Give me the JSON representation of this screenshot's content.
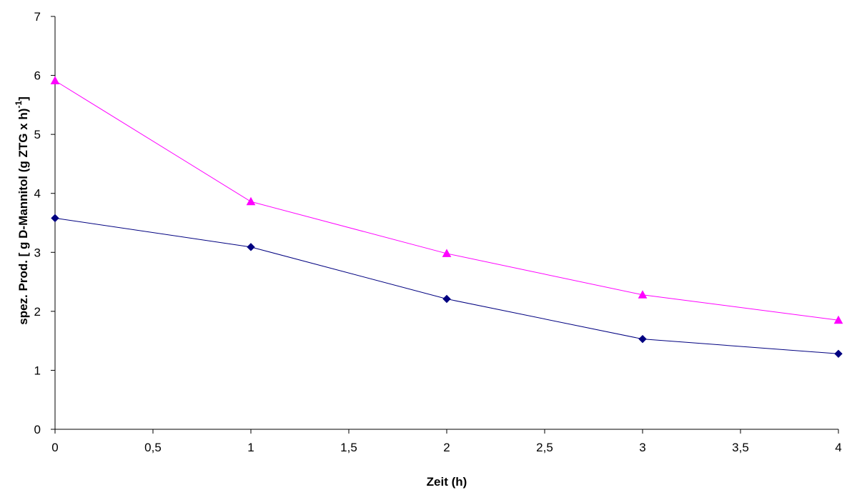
{
  "chart_data": {
    "type": "line",
    "title": "",
    "xlabel": "Zeit (h)",
    "ylabel_main": "spez. Prod. [ g D-Mannitol (g ZTG x h)",
    "ylabel_sup": "-1",
    "ylabel_end": "]",
    "xlim": [
      0,
      4
    ],
    "ylim": [
      0,
      7
    ],
    "x_ticks": [
      0,
      0.5,
      1,
      1.5,
      2,
      2.5,
      3,
      3.5,
      4
    ],
    "x_tick_labels": [
      "0",
      "0,5",
      "1",
      "1,5",
      "2",
      "2,5",
      "3",
      "3,5",
      "4"
    ],
    "y_ticks": [
      0,
      1,
      2,
      3,
      4,
      5,
      6,
      7
    ],
    "y_tick_labels": [
      "0",
      "1",
      "2",
      "3",
      "4",
      "5",
      "6",
      "7"
    ],
    "grid": false,
    "legend": "none",
    "x": [
      0,
      1,
      2,
      3,
      4
    ],
    "series": [
      {
        "marker": "diamond",
        "color": "#000080",
        "values": [
          3.58,
          3.09,
          2.21,
          1.53,
          1.28
        ]
      },
      {
        "marker": "triangle",
        "color": "#ff00ff",
        "values": [
          5.91,
          3.86,
          2.98,
          2.28,
          1.85
        ]
      }
    ]
  }
}
